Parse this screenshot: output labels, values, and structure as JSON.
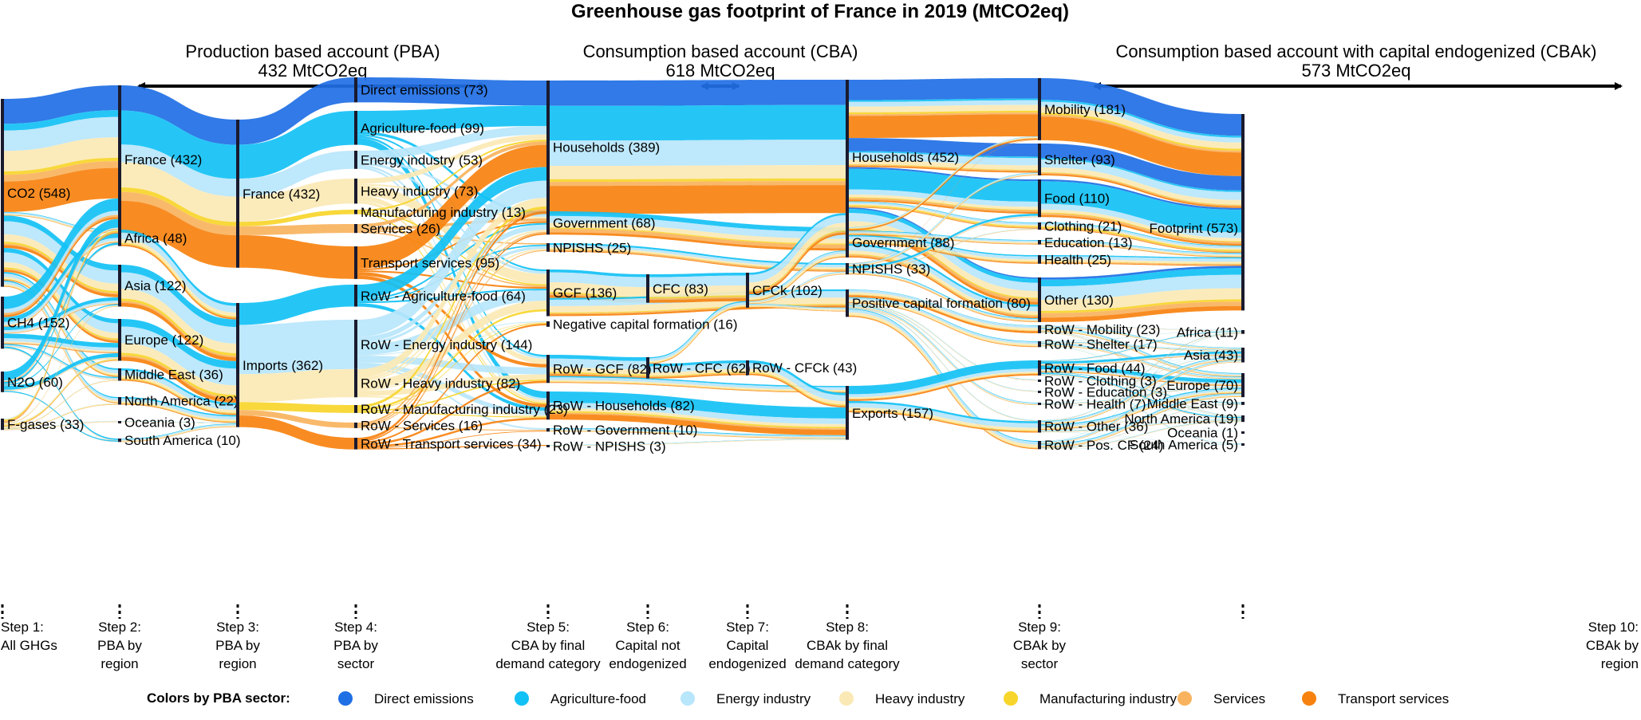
{
  "title": "Greenhouse gas footprint of France in 2019 (MtCO2eq)",
  "accounts": [
    {
      "name": "Production based account (PBA)",
      "total": "432 MtCO2eq"
    },
    {
      "name": "Consumption based account (CBA)",
      "total": "618 MtCO2eq"
    },
    {
      "name": "Consumption based account with capital endogenized (CBAk)",
      "total": "573 MtCO2eq"
    }
  ],
  "colors": {
    "Direct emissions": "#1f6fe5",
    "Agriculture-food": "#12c1f5",
    "Energy industry": "#b8e6fb",
    "Heavy industry": "#fbe9b5",
    "Manufacturing industry": "#f7d52a",
    "Services": "#f9b35e",
    "Transport services": "#f7820f",
    "node": "#1a1a2e"
  },
  "legend_title": "Colors by PBA sector:",
  "legend": [
    "Direct emissions",
    "Agriculture-food",
    "Energy industry",
    "Heavy industry",
    "Manufacturing industry",
    "Services",
    "Transport services"
  ],
  "steps": [
    [
      "Step 1:",
      "All GHGs"
    ],
    [
      "Step 2:",
      "PBA by",
      "region"
    ],
    [
      "Step 3:",
      "PBA by",
      "region"
    ],
    [
      "Step 4:",
      "PBA by",
      "sector"
    ],
    [
      "Step 5:",
      "CBA by final",
      "demand category"
    ],
    [
      "Step 6:",
      "Capital not",
      "endogenized"
    ],
    [
      "Step 7:",
      "Capital",
      "endogenized"
    ],
    [
      "Step 8:",
      "CBAk by final",
      "demand category"
    ],
    [
      "Step 9:",
      "CBAk by",
      "sector"
    ],
    [
      "Step 10:",
      "CBAk by",
      "region"
    ]
  ],
  "nodes": {
    "s1": [
      {
        "id": "co2",
        "label": "CO2 (548)",
        "value": 548
      },
      {
        "id": "ch4",
        "label": "CH4 (152)",
        "value": 152
      },
      {
        "id": "n2o",
        "label": "N2O (60)",
        "value": 60
      },
      {
        "id": "fgas",
        "label": "F-gases (33)",
        "value": 33
      }
    ],
    "s2": [
      {
        "id": "fr2",
        "label": "France  (432)",
        "value": 432
      },
      {
        "id": "af2",
        "label": "Africa  (48)",
        "value": 48
      },
      {
        "id": "as2",
        "label": "Asia  (122)",
        "value": 122
      },
      {
        "id": "eu2",
        "label": "Europe  (122)",
        "value": 122
      },
      {
        "id": "me2",
        "label": "Middle East  (36)",
        "value": 36
      },
      {
        "id": "na2",
        "label": "North America  (22)",
        "value": 22
      },
      {
        "id": "oc2",
        "label": "Oceania  (3)",
        "value": 3
      },
      {
        "id": "sa2",
        "label": "South America  (10)",
        "value": 10
      }
    ],
    "s3": [
      {
        "id": "fr3",
        "label": "France (432)",
        "value": 432
      },
      {
        "id": "im3",
        "label": "Imports (362)",
        "value": 362
      }
    ],
    "s4": [
      {
        "id": "de4",
        "label": "Direct emissions (73)",
        "value": 73
      },
      {
        "id": "ag4",
        "label": "Agriculture-food (99)",
        "value": 99
      },
      {
        "id": "en4",
        "label": "Energy industry (53)",
        "value": 53
      },
      {
        "id": "hv4",
        "label": "Heavy industry (73)",
        "value": 73
      },
      {
        "id": "mf4",
        "label": "Manufacturing industry (13)",
        "value": 13
      },
      {
        "id": "sv4",
        "label": "Services (26)",
        "value": 26
      },
      {
        "id": "tr4",
        "label": "Transport services (95)",
        "value": 95
      },
      {
        "id": "rag4",
        "label": "RoW - Agriculture-food (64)",
        "value": 64
      },
      {
        "id": "ren4",
        "label": "RoW - Energy industry (144)",
        "value": 144
      },
      {
        "id": "rhv4",
        "label": "RoW - Heavy industry (82)",
        "value": 82
      },
      {
        "id": "rmf4",
        "label": "RoW - Manufacturing industry (23)",
        "value": 23
      },
      {
        "id": "rsv4",
        "label": "RoW - Services (16)",
        "value": 16
      },
      {
        "id": "rtr4",
        "label": "RoW - Transport services (34)",
        "value": 34
      }
    ],
    "s5": [
      {
        "id": "hh5",
        "label": "Households (389)",
        "value": 389
      },
      {
        "id": "gov5",
        "label": "Government (68)",
        "value": 68
      },
      {
        "id": "np5",
        "label": "NPISHS (25)",
        "value": 25
      },
      {
        "id": "gcf5",
        "label": "GCF (136)",
        "value": 136
      },
      {
        "id": "neg5",
        "label": "Negative capital formation (16)",
        "value": 16
      },
      {
        "id": "rgcf5",
        "label": "RoW - GCF (82)",
        "value": 82
      },
      {
        "id": "rhh5",
        "label": "RoW - Households (82)",
        "value": 82
      },
      {
        "id": "rgov5",
        "label": "RoW - Government (10)",
        "value": 10
      },
      {
        "id": "rnp5",
        "label": "RoW - NPISHS (3)",
        "value": 3
      }
    ],
    "s6": [
      {
        "id": "cfc6",
        "label": "CFC (83)",
        "value": 83
      },
      {
        "id": "rcfc6",
        "label": "RoW - CFC (62)",
        "value": 62
      }
    ],
    "s7": [
      {
        "id": "cfck7",
        "label": "CFCk (102)",
        "value": 102
      },
      {
        "id": "rcfck7",
        "label": "RoW - CFCk (43)",
        "value": 43
      }
    ],
    "s8": [
      {
        "id": "hh8",
        "label": "Households  (452)",
        "value": 452
      },
      {
        "id": "gov8",
        "label": "Government  (88)",
        "value": 88
      },
      {
        "id": "np8",
        "label": "NPISHS  (33)",
        "value": 33
      },
      {
        "id": "pcf8",
        "label": "Positive capital formation  (80)",
        "value": 80
      },
      {
        "id": "ex8",
        "label": "Exports (157)",
        "value": 157
      }
    ],
    "s9": [
      {
        "id": "mob9",
        "label": "Mobility (181)",
        "value": 181
      },
      {
        "id": "shl9",
        "label": "Shelter (93)",
        "value": 93
      },
      {
        "id": "food9",
        "label": "Food (110)",
        "value": 110
      },
      {
        "id": "clo9",
        "label": "Clothing (21)",
        "value": 21
      },
      {
        "id": "edu9",
        "label": "Education (13)",
        "value": 13
      },
      {
        "id": "hlt9",
        "label": "Health (25)",
        "value": 25
      },
      {
        "id": "oth9",
        "label": "Other (130)",
        "value": 130
      },
      {
        "id": "rmob9",
        "label": "RoW - Mobility (23)",
        "value": 23
      },
      {
        "id": "rshl9",
        "label": "RoW - Shelter (17)",
        "value": 17
      },
      {
        "id": "rfood9",
        "label": "RoW - Food (44)",
        "value": 44
      },
      {
        "id": "rclo9",
        "label": "RoW - Clothing (3)",
        "value": 3
      },
      {
        "id": "redu9",
        "label": "RoW - Education (3)",
        "value": 3
      },
      {
        "id": "rhlt9",
        "label": "RoW - Health (7)",
        "value": 7
      },
      {
        "id": "roth9",
        "label": "RoW - Other (36)",
        "value": 36
      },
      {
        "id": "rpcf9",
        "label": "RoW - Pos. CF (24)",
        "value": 24
      }
    ],
    "s10": [
      {
        "id": "fp10",
        "label": "Footprint (573)",
        "value": 573
      },
      {
        "id": "af10",
        "label": "Africa (11)",
        "value": 11
      },
      {
        "id": "as10",
        "label": "Asia (43)",
        "value": 43
      },
      {
        "id": "eu10",
        "label": "Europe (70)",
        "value": 70
      },
      {
        "id": "me10",
        "label": "Middle East (9)",
        "value": 9
      },
      {
        "id": "na10",
        "label": "North America (19)",
        "value": 19
      },
      {
        "id": "oc10",
        "label": "Oceania (1)",
        "value": 1
      },
      {
        "id": "sa10",
        "label": "South America (5)",
        "value": 5
      }
    ]
  }
}
